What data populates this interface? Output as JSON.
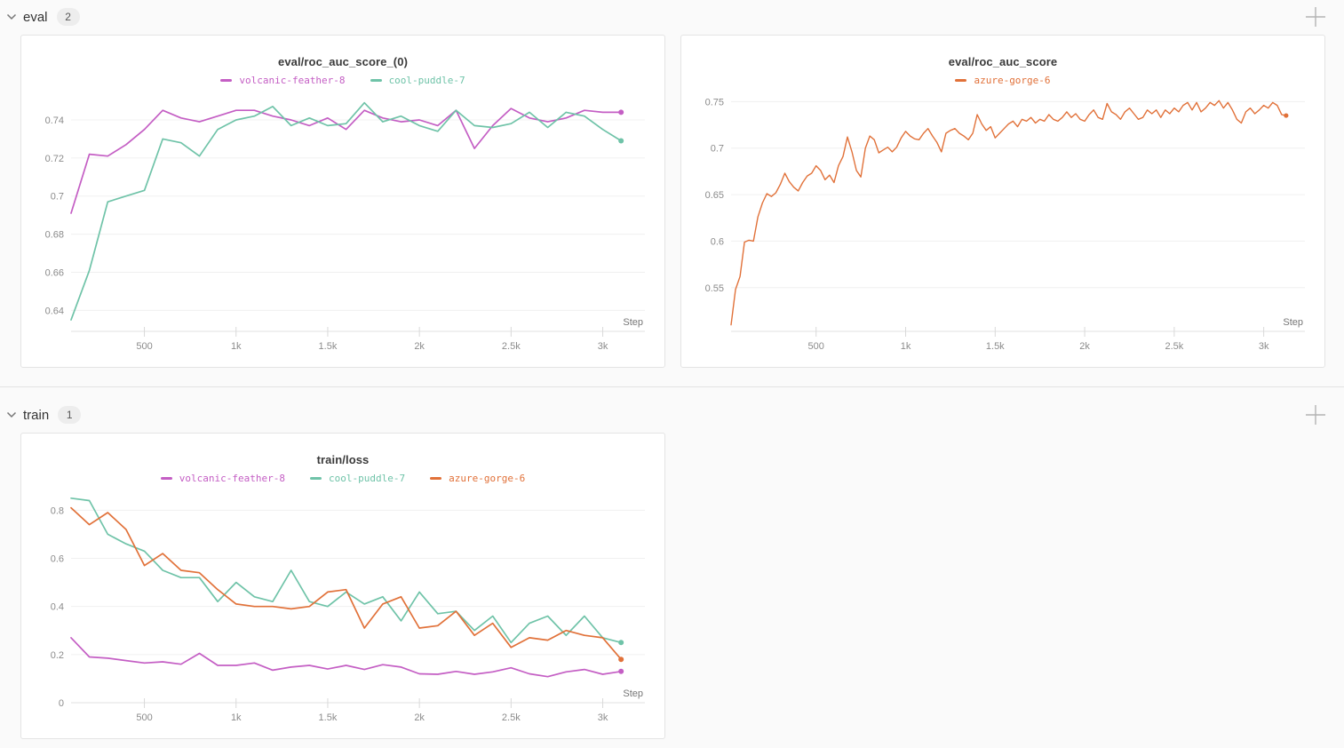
{
  "icons": {
    "section_collapse": "chevron-down",
    "add_panel": "plus"
  },
  "sections": [
    {
      "label": "eval",
      "count": "2"
    },
    {
      "label": "train",
      "count": "1"
    }
  ],
  "colors": {
    "magenta": "#c45ec4",
    "teal": "#6fc3a8",
    "orange": "#e17139",
    "grid": "#f0f0f0",
    "axis": "#e2e2e2",
    "tick": "#d9d9d9"
  },
  "chart_data": [
    {
      "type": "line",
      "title": "eval/roc_auc_score_(0)",
      "xlabel": "Step",
      "x_start": 100,
      "x_step": 100,
      "xlim": [
        100,
        3230
      ],
      "ylim": [
        0.629,
        0.7535
      ],
      "x_ticks": [
        {
          "v": 500,
          "label": "500"
        },
        {
          "v": 1000,
          "label": "1k"
        },
        {
          "v": 1500,
          "label": "1.5k"
        },
        {
          "v": 2000,
          "label": "2k"
        },
        {
          "v": 2500,
          "label": "2.5k"
        },
        {
          "v": 3000,
          "label": "3k"
        }
      ],
      "y_ticks": [
        {
          "v": 0.64,
          "label": "0.64"
        },
        {
          "v": 0.66,
          "label": "0.66"
        },
        {
          "v": 0.68,
          "label": "0.68"
        },
        {
          "v": 0.7,
          "label": "0.7"
        },
        {
          "v": 0.72,
          "label": "0.72"
        },
        {
          "v": 0.74,
          "label": "0.74"
        }
      ],
      "line_width": 1.7,
      "dot_r": 3,
      "series": [
        {
          "name": "volcanic-feather-8",
          "color": "#c45ec4",
          "values": [
            0.691,
            0.722,
            0.721,
            0.727,
            0.735,
            0.745,
            0.741,
            0.739,
            0.742,
            0.745,
            0.745,
            0.742,
            0.74,
            0.737,
            0.741,
            0.735,
            0.745,
            0.741,
            0.739,
            0.74,
            0.737,
            0.745,
            0.725,
            0.737,
            0.746,
            0.741,
            0.739,
            0.741,
            0.745,
            0.744,
            0.744
          ]
        },
        {
          "name": "cool-puddle-7",
          "color": "#6fc3a8",
          "values": [
            0.635,
            0.661,
            0.697,
            0.7,
            0.703,
            0.73,
            0.728,
            0.721,
            0.735,
            0.74,
            0.742,
            0.747,
            0.737,
            0.741,
            0.737,
            0.738,
            0.749,
            0.739,
            0.742,
            0.737,
            0.734,
            0.745,
            0.737,
            0.736,
            0.738,
            0.744,
            0.736,
            0.744,
            0.742,
            0.735,
            0.729
          ]
        }
      ]
    },
    {
      "type": "line",
      "title": "eval/roc_auc_score",
      "xlabel": "Step",
      "x_start": 25,
      "x_step": 25,
      "xlim": [
        25,
        3230
      ],
      "ylim": [
        0.503,
        0.758
      ],
      "x_ticks": [
        {
          "v": 500,
          "label": "500"
        },
        {
          "v": 1000,
          "label": "1k"
        },
        {
          "v": 1500,
          "label": "1.5k"
        },
        {
          "v": 2000,
          "label": "2k"
        },
        {
          "v": 2500,
          "label": "2.5k"
        },
        {
          "v": 3000,
          "label": "3k"
        }
      ],
      "y_ticks": [
        {
          "v": 0.55,
          "label": "0.55"
        },
        {
          "v": 0.6,
          "label": "0.6"
        },
        {
          "v": 0.65,
          "label": "0.65"
        },
        {
          "v": 0.7,
          "label": "0.7"
        },
        {
          "v": 0.75,
          "label": "0.75"
        }
      ],
      "line_width": 1.4,
      "dot_r": 2.6,
      "series": [
        {
          "name": "azure-gorge-6",
          "color": "#e17139",
          "values": [
            0.51,
            0.548,
            0.562,
            0.599,
            0.601,
            0.6,
            0.626,
            0.641,
            0.651,
            0.648,
            0.652,
            0.661,
            0.673,
            0.664,
            0.658,
            0.654,
            0.663,
            0.67,
            0.673,
            0.681,
            0.676,
            0.666,
            0.671,
            0.663,
            0.681,
            0.691,
            0.712,
            0.696,
            0.676,
            0.669,
            0.7,
            0.713,
            0.709,
            0.695,
            0.698,
            0.701,
            0.696,
            0.701,
            0.711,
            0.718,
            0.713,
            0.71,
            0.709,
            0.716,
            0.721,
            0.713,
            0.706,
            0.696,
            0.716,
            0.719,
            0.721,
            0.716,
            0.713,
            0.709,
            0.716,
            0.736,
            0.726,
            0.719,
            0.723,
            0.711,
            0.716,
            0.721,
            0.726,
            0.729,
            0.723,
            0.731,
            0.729,
            0.733,
            0.727,
            0.731,
            0.729,
            0.736,
            0.731,
            0.729,
            0.733,
            0.739,
            0.733,
            0.737,
            0.731,
            0.729,
            0.736,
            0.741,
            0.733,
            0.731,
            0.748,
            0.739,
            0.736,
            0.731,
            0.739,
            0.743,
            0.737,
            0.731,
            0.733,
            0.741,
            0.737,
            0.741,
            0.733,
            0.741,
            0.737,
            0.743,
            0.739,
            0.746,
            0.749,
            0.741,
            0.749,
            0.739,
            0.743,
            0.749,
            0.746,
            0.751,
            0.743,
            0.749,
            0.741,
            0.731,
            0.727,
            0.739,
            0.743,
            0.737,
            0.741,
            0.746,
            0.743,
            0.749,
            0.746,
            0.736,
            0.735
          ]
        }
      ]
    },
    {
      "type": "line",
      "title": "train/loss",
      "xlabel": "Step",
      "x_start": 100,
      "x_step": 100,
      "xlim": [
        100,
        3230
      ],
      "ylim": [
        0,
        0.875
      ],
      "x_ticks": [
        {
          "v": 500,
          "label": "500"
        },
        {
          "v": 1000,
          "label": "1k"
        },
        {
          "v": 1500,
          "label": "1.5k"
        },
        {
          "v": 2000,
          "label": "2k"
        },
        {
          "v": 2500,
          "label": "2.5k"
        },
        {
          "v": 3000,
          "label": "3k"
        }
      ],
      "y_ticks": [
        {
          "v": 0,
          "label": "0"
        },
        {
          "v": 0.2,
          "label": "0.2"
        },
        {
          "v": 0.4,
          "label": "0.4"
        },
        {
          "v": 0.6,
          "label": "0.6"
        },
        {
          "v": 0.8,
          "label": "0.8"
        }
      ],
      "line_width": 1.7,
      "dot_r": 3,
      "series": [
        {
          "name": "volcanic-feather-8",
          "color": "#c45ec4",
          "values": [
            0.27,
            0.19,
            0.185,
            0.175,
            0.165,
            0.17,
            0.16,
            0.205,
            0.155,
            0.155,
            0.165,
            0.135,
            0.148,
            0.155,
            0.14,
            0.155,
            0.138,
            0.158,
            0.148,
            0.12,
            0.118,
            0.13,
            0.118,
            0.128,
            0.145,
            0.12,
            0.108,
            0.128,
            0.138,
            0.118,
            0.13
          ]
        },
        {
          "name": "cool-puddle-7",
          "color": "#6fc3a8",
          "values": [
            0.85,
            0.84,
            0.7,
            0.66,
            0.63,
            0.55,
            0.52,
            0.52,
            0.42,
            0.5,
            0.44,
            0.42,
            0.55,
            0.42,
            0.4,
            0.46,
            0.41,
            0.44,
            0.34,
            0.46,
            0.37,
            0.38,
            0.3,
            0.36,
            0.25,
            0.33,
            0.36,
            0.28,
            0.36,
            0.27,
            0.25
          ]
        },
        {
          "name": "azure-gorge-6",
          "color": "#e17139",
          "values": [
            0.81,
            0.74,
            0.79,
            0.72,
            0.57,
            0.62,
            0.55,
            0.54,
            0.47,
            0.41,
            0.4,
            0.4,
            0.39,
            0.4,
            0.46,
            0.47,
            0.31,
            0.41,
            0.44,
            0.31,
            0.32,
            0.38,
            0.28,
            0.33,
            0.23,
            0.27,
            0.26,
            0.3,
            0.28,
            0.27,
            0.18
          ]
        }
      ]
    }
  ]
}
